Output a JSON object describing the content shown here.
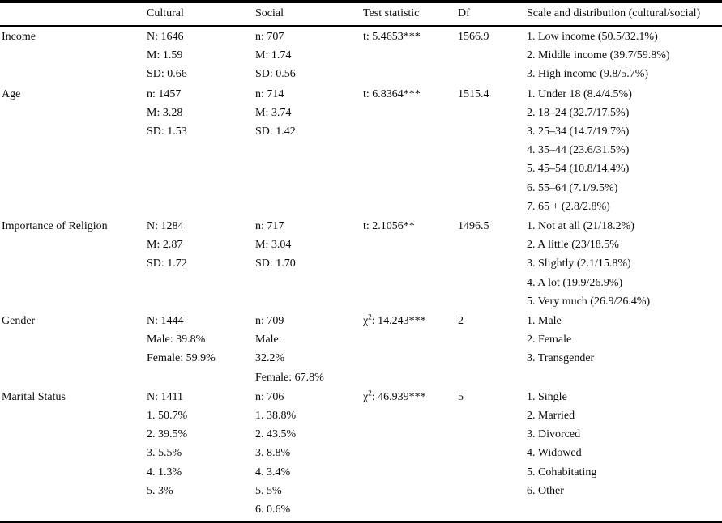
{
  "table": {
    "headers": {
      "variable": "",
      "cultural": "Cultural",
      "social": "Social",
      "test": "Test statistic",
      "df": "Df",
      "scale": "Scale and distribution (cultural/social)"
    },
    "rows": [
      {
        "label": "Income",
        "cultural": [
          "N: 1646",
          "M: 1.59",
          "SD: 0.66"
        ],
        "social": [
          "n: 707",
          "M: 1.74",
          "SD: 0.56"
        ],
        "test": {
          "sym": "t",
          "sup": "",
          "rest": ": 5.4653***"
        },
        "df": "1566.9",
        "scale": [
          "1. Low income (50.5/32.1%)",
          "2. Middle income (39.7/59.8%)",
          "3. High income (9.8/5.7%)"
        ]
      },
      {
        "label": "Age",
        "cultural": [
          "n: 1457",
          "M: 3.28",
          "SD: 1.53"
        ],
        "social": [
          "n: 714",
          "M: 3.74",
          "SD: 1.42"
        ],
        "test": {
          "sym": "t",
          "sup": "",
          "rest": ": 6.8364***"
        },
        "df": "1515.4",
        "scale": [
          "1. Under 18 (8.4/4.5%)",
          "2. 18–24 (32.7/17.5%)",
          "3. 25–34 (14.7/19.7%)",
          "4. 35–44 (23.6/31.5%)",
          "5. 45–54 (10.8/14.4%)",
          "6. 55–64 (7.1/9.5%)",
          "7. 65 + (2.8/2.8%)"
        ]
      },
      {
        "label": "Importance of Religion",
        "cultural": [
          "N: 1284",
          "M: 2.87",
          "SD: 1.72"
        ],
        "social": [
          "n: 717",
          "M: 3.04",
          "SD: 1.70"
        ],
        "test": {
          "sym": "t",
          "sup": "",
          "rest": ": 2.1056**"
        },
        "df": "1496.5",
        "scale": [
          "1. Not at all (21/18.2%)",
          "2. A little (23/18.5%",
          "3. Slightly (2.1/15.8%)",
          "4. A lot (19.9/26.9%)",
          "5. Very much (26.9/26.4%)"
        ]
      },
      {
        "label": "Gender",
        "cultural": [
          "N: 1444",
          "Male: 39.8%",
          "Female: 59.9%"
        ],
        "social": [
          "n: 709",
          "Male:",
          "32.2%",
          "Female: 67.8%"
        ],
        "test": {
          "sym": "χ",
          "sup": "2",
          "rest": ": 14.243***"
        },
        "df": "2",
        "scale": [
          "1. Male",
          "2. Female",
          "3. Transgender"
        ]
      },
      {
        "label": "Marital Status",
        "cultural": [
          "N: 1411",
          "1. 50.7%",
          "2. 39.5%",
          "3. 5.5%",
          "4. 1.3%",
          "5. 3%"
        ],
        "social": [
          "n: 706",
          "1. 38.8%",
          "2. 43.5%",
          "3. 8.8%",
          "4. 3.4%",
          "5. 5%",
          "6. 0.6%"
        ],
        "test": {
          "sym": "χ",
          "sup": "2",
          "rest": ": 46.939***"
        },
        "df": "5",
        "scale": [
          "1. Single",
          "2. Married",
          "3. Divorced",
          "4. Widowed",
          "5. Cohabitating",
          "6. Other"
        ]
      }
    ]
  }
}
